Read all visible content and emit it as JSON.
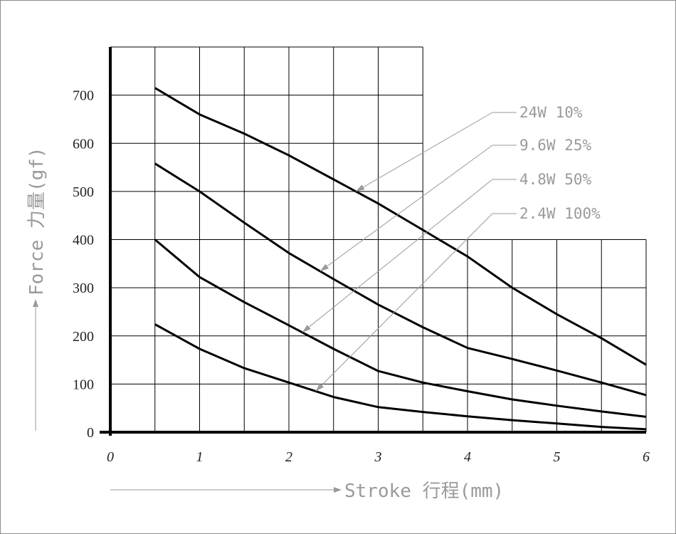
{
  "chart_data": {
    "type": "line",
    "xlabel": "Stroke 行程(mm)",
    "ylabel": "Force 力量(gf)",
    "xlim": [
      0,
      6
    ],
    "ylim": [
      0,
      800
    ],
    "x_ticks": [
      "0",
      "1",
      "2",
      "3",
      "4",
      "5",
      "6"
    ],
    "y_ticks": [
      "0",
      "100",
      "200",
      "300",
      "400",
      "500",
      "600",
      "700"
    ],
    "grid": true,
    "series": [
      {
        "name": "24W 10%",
        "x": [
          0.5,
          1,
          1.5,
          2,
          2.5,
          3,
          3.5,
          4,
          4.5,
          5,
          5.5,
          6
        ],
        "y": [
          715,
          660,
          620,
          575,
          525,
          475,
          420,
          365,
          300,
          245,
          195,
          140
        ]
      },
      {
        "name": "9.6W 25%",
        "x": [
          0.5,
          1,
          1.5,
          2,
          2.5,
          3,
          3.5,
          4,
          4.5,
          5,
          5.5,
          6
        ],
        "y": [
          558,
          500,
          435,
          372,
          318,
          265,
          218,
          175,
          152,
          128,
          103,
          77
        ]
      },
      {
        "name": "4.8W 50%",
        "x": [
          0.5,
          1,
          1.5,
          2,
          2.5,
          3,
          3.5,
          4,
          4.5,
          5,
          5.5,
          6
        ],
        "y": [
          400,
          322,
          270,
          222,
          173,
          127,
          103,
          85,
          68,
          55,
          43,
          32
        ]
      },
      {
        "name": "2.4W 100%",
        "x": [
          0.5,
          1,
          1.5,
          2,
          2.5,
          3,
          3.5,
          4,
          4.5,
          5,
          5.5,
          6
        ],
        "y": [
          224,
          173,
          133,
          103,
          73,
          52,
          42,
          33,
          25,
          18,
          11,
          6
        ]
      }
    ]
  }
}
